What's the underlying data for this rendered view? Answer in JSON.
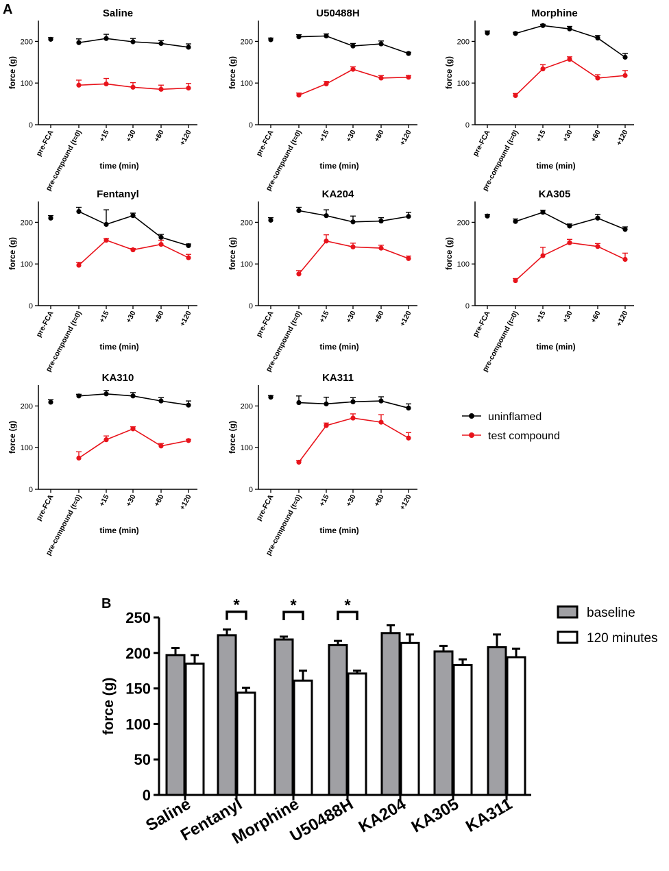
{
  "panel_labels": {
    "a": "A",
    "b": "B"
  },
  "colors": {
    "uninflamed": "#000000",
    "test": "#e8131b",
    "baseline_bar": "#a0a0a4",
    "after_bar": "#ffffff"
  },
  "panel_a_legend": {
    "uninflamed": "uninflamed",
    "test": "test compound"
  },
  "panel_b_legend": {
    "baseline": "baseline",
    "after": "120 minutes"
  },
  "chart_data": [
    {
      "type": "line",
      "title": "Saline",
      "xlabel": "time (min)",
      "ylabel": "force (g)",
      "ylim": [
        0,
        250
      ],
      "yticks": [
        0,
        100,
        200
      ],
      "categories": [
        "pre-FCA",
        "pre-compound (t=0)",
        "+15",
        "+30",
        "+60",
        "+120"
      ],
      "series": [
        {
          "name": "uninflamed",
          "values": [
            205,
            197,
            207,
            199,
            195,
            186
          ],
          "errors": [
            4,
            9,
            10,
            8,
            7,
            8
          ]
        },
        {
          "name": "test compound",
          "values": [
            null,
            95,
            98,
            90,
            85,
            88
          ],
          "errors": [
            null,
            12,
            13,
            11,
            10,
            11
          ]
        }
      ]
    },
    {
      "type": "line",
      "title": "U50488H",
      "xlabel": "time (min)",
      "ylabel": "force (g)",
      "ylim": [
        0,
        250
      ],
      "yticks": [
        0,
        100,
        200
      ],
      "categories": [
        "pre-FCA",
        "pre-compound (t=0)",
        "+15",
        "+30",
        "+60",
        "+120"
      ],
      "series": [
        {
          "name": "uninflamed",
          "values": [
            204,
            211,
            213,
            189,
            194,
            171
          ],
          "errors": [
            4,
            5,
            5,
            6,
            7,
            3
          ]
        },
        {
          "name": "test compound",
          "values": [
            null,
            71,
            98,
            133,
            112,
            114
          ],
          "errors": [
            null,
            5,
            6,
            6,
            6,
            4
          ]
        }
      ]
    },
    {
      "type": "line",
      "title": "Morphine",
      "xlabel": "time (min)",
      "ylabel": "force (g)",
      "ylim": [
        0,
        250
      ],
      "yticks": [
        0,
        100,
        200
      ],
      "categories": [
        "pre-FCA",
        "pre-compound (t=0)",
        "+15",
        "+30",
        "+60",
        "+120"
      ],
      "series": [
        {
          "name": "uninflamed",
          "values": [
            220,
            219,
            238,
            230,
            208,
            162
          ],
          "errors": [
            5,
            3,
            3,
            6,
            6,
            9
          ]
        },
        {
          "name": "test compound",
          "values": [
            null,
            70,
            134,
            157,
            112,
            118
          ],
          "errors": [
            null,
            5,
            10,
            6,
            8,
            12
          ]
        }
      ]
    },
    {
      "type": "line",
      "title": "Fentanyl",
      "xlabel": "time (min)",
      "ylabel": "force (g)",
      "ylim": [
        0,
        250
      ],
      "yticks": [
        0,
        100,
        200
      ],
      "categories": [
        "pre-FCA",
        "pre-compound (t=0)",
        "+15",
        "+30",
        "+60",
        "+120"
      ],
      "series": [
        {
          "name": "uninflamed",
          "values": [
            210,
            226,
            195,
            216,
            164,
            144
          ],
          "errors": [
            6,
            10,
            35,
            6,
            7,
            4
          ]
        },
        {
          "name": "test compound",
          "values": [
            null,
            97,
            157,
            134,
            147,
            115
          ],
          "errors": [
            null,
            7,
            4,
            3,
            10,
            8
          ]
        }
      ]
    },
    {
      "type": "line",
      "title": "KA204",
      "xlabel": "time (min)",
      "ylabel": "force (g)",
      "ylim": [
        0,
        250
      ],
      "yticks": [
        0,
        100,
        200
      ],
      "categories": [
        "pre-FCA",
        "pre-compound (t=0)",
        "+15",
        "+30",
        "+60",
        "+120"
      ],
      "series": [
        {
          "name": "uninflamed",
          "values": [
            205,
            228,
            216,
            201,
            203,
            214
          ],
          "errors": [
            6,
            8,
            14,
            14,
            8,
            10
          ]
        },
        {
          "name": "test compound",
          "values": [
            null,
            76,
            155,
            141,
            138,
            113
          ],
          "errors": [
            null,
            8,
            15,
            9,
            7,
            6
          ]
        }
      ]
    },
    {
      "type": "line",
      "title": "KA305",
      "xlabel": "time (min)",
      "ylabel": "force (g)",
      "ylim": [
        0,
        250
      ],
      "yticks": [
        0,
        100,
        200
      ],
      "categories": [
        "pre-FCA",
        "pre-compound (t=0)",
        "+15",
        "+30",
        "+60",
        "+120"
      ],
      "series": [
        {
          "name": "uninflamed",
          "values": [
            215,
            202,
            224,
            191,
            210,
            183
          ],
          "errors": [
            4,
            6,
            5,
            5,
            9,
            6
          ]
        },
        {
          "name": "test compound",
          "values": [
            null,
            60,
            120,
            151,
            142,
            111
          ],
          "errors": [
            null,
            5,
            20,
            8,
            7,
            15
          ]
        }
      ]
    },
    {
      "type": "line",
      "title": "KA310",
      "xlabel": "time (min)",
      "ylabel": "force (g)",
      "ylim": [
        0,
        250
      ],
      "yticks": [
        0,
        100,
        200
      ],
      "categories": [
        "pre-FCA",
        "pre-compound (t=0)",
        "+15",
        "+30",
        "+60",
        "+120"
      ],
      "series": [
        {
          "name": "uninflamed",
          "values": [
            209,
            224,
            229,
            224,
            212,
            202
          ],
          "errors": [
            6,
            4,
            8,
            8,
            8,
            10
          ]
        },
        {
          "name": "test compound",
          "values": [
            null,
            75,
            119,
            145,
            104,
            117
          ],
          "errors": [
            null,
            15,
            9,
            5,
            6,
            3
          ]
        }
      ]
    },
    {
      "type": "line",
      "title": "KA311",
      "xlabel": "time (min)",
      "ylabel": "force (g)",
      "ylim": [
        0,
        250
      ],
      "yticks": [
        0,
        100,
        200
      ],
      "categories": [
        "pre-FCA",
        "pre-compound (t=0)",
        "+15",
        "+30",
        "+60",
        "+120"
      ],
      "series": [
        {
          "name": "uninflamed",
          "values": [
            221,
            208,
            205,
            210,
            212,
            195
          ],
          "errors": [
            4,
            16,
            16,
            10,
            10,
            10
          ]
        },
        {
          "name": "test compound",
          "values": [
            null,
            65,
            153,
            171,
            161,
            123
          ],
          "errors": [
            null,
            4,
            6,
            10,
            18,
            13
          ]
        }
      ]
    },
    {
      "type": "bar",
      "title": "",
      "xlabel": "",
      "ylabel": "force (g)",
      "ylim": [
        0,
        250
      ],
      "yticks": [
        0,
        50,
        100,
        150,
        200,
        250
      ],
      "categories": [
        "Saline",
        "Fentanyl",
        "Morphine",
        "U50488H",
        "KA204",
        "KA305",
        "KA311"
      ],
      "series": [
        {
          "name": "baseline",
          "values": [
            197,
            225,
            219,
            211,
            228,
            202,
            208
          ],
          "errors": [
            10,
            8,
            4,
            6,
            11,
            8,
            18
          ]
        },
        {
          "name": "120 minutes",
          "values": [
            185,
            144,
            161,
            171,
            214,
            183,
            194
          ],
          "errors": [
            12,
            7,
            14,
            4,
            12,
            8,
            12
          ]
        }
      ],
      "annotations": [
        {
          "between": [
            "Fentanyl"
          ],
          "text": "*"
        },
        {
          "between": [
            "Morphine"
          ],
          "text": "*"
        },
        {
          "between": [
            "U50488H"
          ],
          "text": "*"
        }
      ]
    }
  ]
}
